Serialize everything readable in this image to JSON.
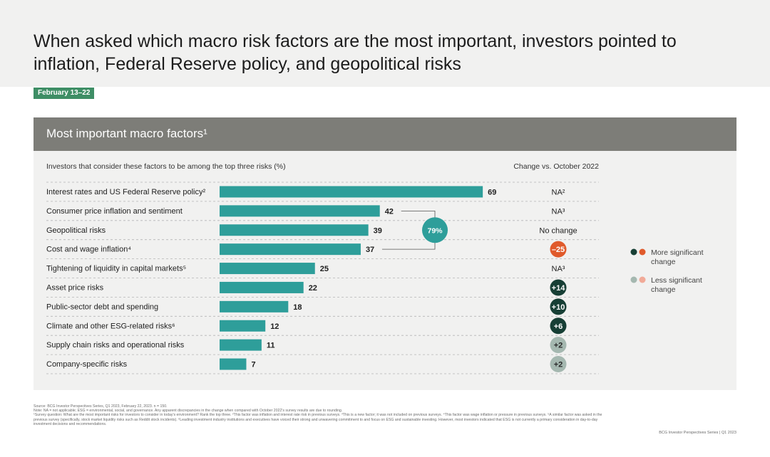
{
  "header": {
    "title": "When asked which macro risk factors are the most important, investors pointed to inflation, Federal Reserve policy, and geopolitical risks",
    "date_badge": "February 13–22"
  },
  "panel": {
    "title": "Most important macro factors¹",
    "subtitle": "Investors that consider these factors to be among the top three risks (%)",
    "change_header": "Change vs. October 2022",
    "bracket_label": "79%"
  },
  "legend": {
    "more": "More significant change",
    "less": "Less significant change",
    "colors": {
      "more_dark": "#173f35",
      "more_orange": "#e05a2b",
      "less_gray": "#a5b8b0",
      "less_pink": "#f1aa98"
    }
  },
  "colors": {
    "bar": "#2e9e9a",
    "bracket": "#2e9e9a"
  },
  "chart_data": {
    "type": "bar",
    "orientation": "horizontal",
    "title": "Most important macro factors¹",
    "xlabel": "Investors that consider these factors to be among the top three risks (%)",
    "xlim": [
      0,
      100
    ],
    "categories": [
      "Interest rates and US Federal Reserve policy²",
      "Consumer price inflation and sentiment",
      "Geopolitical risks",
      "Cost and wage inflation⁴",
      "Tightening of liquidity in capital markets⁵",
      "Asset price risks",
      "Public-sector debt and spending",
      "Climate and other ESG-related risks⁶",
      "Supply chain risks and operational risks",
      "Company-specific risks"
    ],
    "values": [
      69,
      42,
      39,
      37,
      25,
      22,
      18,
      12,
      11,
      7
    ],
    "changes": [
      {
        "label": "NA²",
        "style": "text"
      },
      {
        "label": "NA³",
        "style": "text"
      },
      {
        "label": "No change",
        "style": "text"
      },
      {
        "label": "–25",
        "style": "more_orange"
      },
      {
        "label": "NA³",
        "style": "text"
      },
      {
        "label": "+14",
        "style": "more_dark"
      },
      {
        "label": "+10",
        "style": "more_dark"
      },
      {
        "label": "+6",
        "style": "more_dark"
      },
      {
        "label": "+2",
        "style": "less_gray"
      },
      {
        "label": "+2",
        "style": "less_gray"
      }
    ]
  },
  "footnotes": {
    "source": "Source: BCG Investor Perspectives Series, Q1 2023, February 22, 2023. n = 150.",
    "note": "Note: NA = not applicable; ESG = environmental, social, and governance. Any apparent discrepancies in the change when compared with October 2022's survey results are due to rounding.",
    "details": "¹Survey question: What are the most important risks for investors to consider in today's environment? Rank the top three. ²This factor was inflation and interest rate risk in previous surveys. ³This is a new factor; it was not included on previous surveys. ⁴This factor was wage inflation or pressure in previous surveys. ⁵A similar factor was asked in the previous survey (specifically, stock market liquidity risks such as Reddit stock incidents). ⁶Leading investment industry institutions and executives have voiced their strong and unwavering commitment to and focus on ESG and sustainable investing. However, most investors indicated that ESG is not currently a primary consideration in day-to-day investment decisions and recommendations.",
    "credit": "BCG Investor Perspectives Series | Q1 2023"
  }
}
